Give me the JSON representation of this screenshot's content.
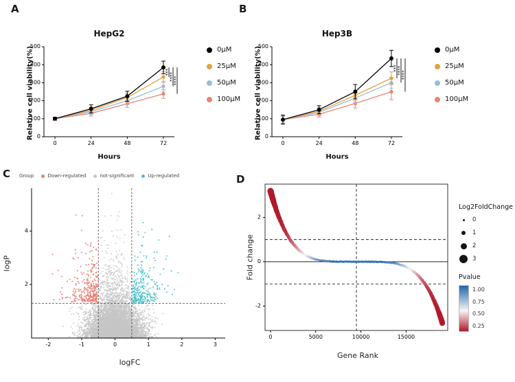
{
  "panels": {
    "a": {
      "letter": "A"
    },
    "b": {
      "letter": "B"
    },
    "c": {
      "letter": "C"
    },
    "d": {
      "letter": "D"
    }
  },
  "chart_data": [
    {
      "id": "hepg2",
      "type": "line",
      "title": "HepG2",
      "xlabel": "Hours",
      "ylabel": "Relative cell viability(%)",
      "x": [
        0,
        24,
        48,
        72
      ],
      "ylim": [
        0,
        500
      ],
      "yticks": [
        0,
        100,
        200,
        300,
        400,
        500
      ],
      "series": [
        {
          "name": "0μM",
          "color": "#000000",
          "values": [
            100,
            155,
            225,
            385
          ],
          "errors": [
            8,
            22,
            28,
            35
          ]
        },
        {
          "name": "25μM",
          "color": "#E2A23F",
          "values": [
            100,
            147,
            218,
            332
          ],
          "errors": [
            8,
            18,
            25,
            30
          ]
        },
        {
          "name": "50μM",
          "color": "#97BDDD",
          "values": [
            100,
            140,
            200,
            280
          ],
          "errors": [
            8,
            16,
            22,
            28
          ]
        },
        {
          "name": "100μM",
          "color": "#EB8377",
          "values": [
            100,
            130,
            183,
            238
          ],
          "errors": [
            8,
            15,
            20,
            25
          ]
        }
      ],
      "significance": [
        "***",
        "****",
        "****"
      ]
    },
    {
      "id": "hep3b",
      "type": "line",
      "title": "Hep3B",
      "xlabel": "Hours",
      "ylabel": "Relative cell viability(%)",
      "x": [
        0,
        24,
        48,
        72
      ],
      "ylim": [
        0,
        500
      ],
      "yticks": [
        0,
        100,
        200,
        300,
        400,
        500
      ],
      "series": [
        {
          "name": "0μM",
          "color": "#000000",
          "values": [
            95,
            150,
            250,
            435
          ],
          "errors": [
            25,
            22,
            40,
            45
          ]
        },
        {
          "name": "25μM",
          "color": "#E2A23F",
          "values": [
            95,
            142,
            230,
            325
          ],
          "errors": [
            20,
            20,
            30,
            35
          ]
        },
        {
          "name": "50μM",
          "color": "#97BDDD",
          "values": [
            95,
            135,
            215,
            300
          ],
          "errors": [
            18,
            18,
            28,
            30
          ]
        },
        {
          "name": "100μM",
          "color": "#EB8377",
          "values": [
            95,
            125,
            185,
            250
          ],
          "errors": [
            18,
            16,
            25,
            45
          ]
        }
      ],
      "significance": [
        "***",
        "****",
        "****"
      ]
    },
    {
      "id": "volcano",
      "type": "scatter",
      "xlabel": "logFC",
      "ylabel": "logP",
      "xlim": [
        -2.5,
        3.3
      ],
      "ylim": [
        0,
        5.6
      ],
      "xticks": [
        -2,
        -1,
        0,
        1,
        2,
        3
      ],
      "yticks": [
        2,
        4
      ],
      "thresholds": {
        "vlines": [
          -0.5,
          0.5
        ],
        "hline": 1.3
      },
      "legend_title": "Group",
      "groups": [
        {
          "name": "Down-regulated",
          "color": "#E97C6F"
        },
        {
          "name": "not-significant",
          "color": "#C6C6C6"
        },
        {
          "name": "Up-regulated",
          "color": "#49C0CC"
        }
      ],
      "point_counts": {
        "not_significant": 6800,
        "center_spike": 300,
        "down": 230,
        "up": 180
      },
      "seed": 42
    },
    {
      "id": "generank",
      "type": "scatter",
      "xlabel": "Gene Rank",
      "ylabel": "Fold change",
      "xlim": [
        -600,
        19600
      ],
      "ylim": [
        -3.1,
        3.5
      ],
      "xticks": [
        0,
        5000,
        10000,
        15000
      ],
      "yticks": [
        -2,
        0,
        2
      ],
      "n_genes": 19000,
      "zero_cross_rank": 9500,
      "max_fold": 3.2,
      "min_fold": -2.75,
      "thresholds": {
        "hlines": [
          1,
          -1
        ],
        "vline": 9500
      },
      "size_legend": {
        "title": "Log2FoldChange",
        "values": [
          "0",
          "1",
          "2",
          "3"
        ]
      },
      "color_legend": {
        "title": "Pvalue",
        "ticks": [
          "1.00",
          "0.75",
          "0.50",
          "0.25"
        ],
        "high_color": "#2166AC",
        "mid_color": "#F7F5F4",
        "low_color": "#B2182B"
      }
    }
  ]
}
